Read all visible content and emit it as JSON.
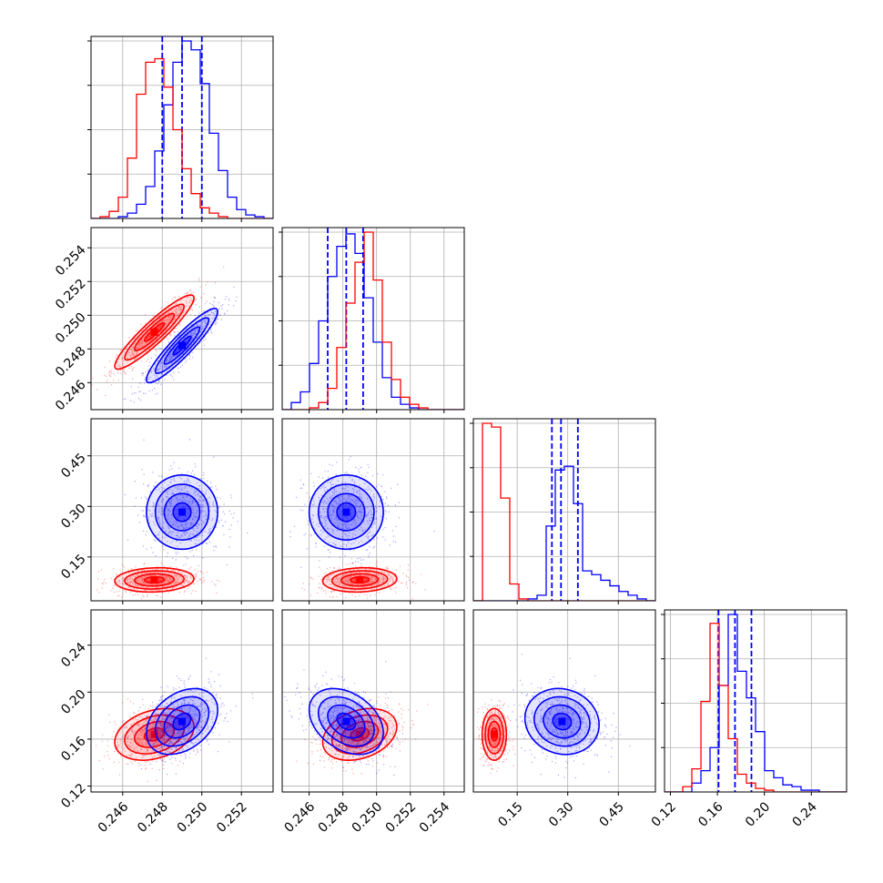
{
  "colors": {
    "series_a": "#0000ff",
    "series_b": "#ff0000",
    "grid": "#b0b0b0"
  },
  "chart_data": {
    "type": "corner",
    "grid": true,
    "parameters": [
      {
        "range": [
          0.2444,
          0.2536
        ],
        "ticks": [
          0.246,
          0.248,
          0.25,
          0.252
        ],
        "tick_labels": [
          "0.246",
          "0.248",
          "0.250",
          "0.252"
        ]
      },
      {
        "range": [
          0.2444,
          0.2552
        ],
        "ticks": [
          0.246,
          0.248,
          0.25,
          0.252,
          0.254
        ],
        "tick_labels": [
          "0.246",
          "0.248",
          "0.250",
          "0.252",
          "0.254"
        ]
      },
      {
        "range": [
          0.02,
          0.56
        ],
        "ticks": [
          0.15,
          0.3,
          0.45
        ],
        "tick_labels": [
          "0.15",
          "0.30",
          "0.45"
        ]
      },
      {
        "range": [
          0.115,
          0.27
        ],
        "ticks": [
          0.12,
          0.16,
          0.2,
          0.24
        ],
        "tick_labels": [
          "0.12",
          "0.16",
          "0.20",
          "0.24"
        ]
      }
    ],
    "series": [
      {
        "color": "#0000ff",
        "mean": [
          0.249,
          0.2482,
          0.283,
          0.175
        ],
        "std": [
          0.0009,
          0.0011,
          0.055,
          0.014
        ],
        "quantiles": [
          [
            0.248,
            0.249,
            0.25
          ],
          [
            0.2471,
            0.2482,
            0.2492
          ],
          [
            0.253,
            0.28,
            0.33
          ],
          [
            0.161,
            0.175,
            0.189
          ]
        ],
        "corr": [
          [
            0,
            1,
            0.92
          ],
          [
            0,
            2,
            0.0
          ],
          [
            0,
            3,
            0.35
          ],
          [
            1,
            2,
            0.0
          ],
          [
            1,
            3,
            -0.35
          ],
          [
            2,
            3,
            -0.1
          ]
        ],
        "hist": [
          {
            "edges": [
              0.2444,
              0.2536
            ],
            "counts": [
              0,
              0,
              0,
              1,
              3,
              8,
              18,
              38,
              64,
              88,
              100,
              95,
              76,
              48,
              27,
              12,
              5,
              2,
              1,
              0
            ]
          },
          {
            "edges": [
              0.2444,
              0.2552
            ],
            "counts": [
              0,
              4,
              10,
              26,
              50,
              75,
              92,
              99,
              88,
              63,
              38,
              18,
              7,
              3,
              1,
              0,
              0,
              0,
              0,
              0
            ]
          },
          {
            "edges": [
              0.02,
              0.56
            ],
            "counts": [
              0,
              0,
              0,
              0,
              0,
              0,
              1,
              3,
              40,
              70,
              72,
              52,
              16,
              14,
              11,
              8,
              5,
              3,
              1,
              0
            ]
          },
          {
            "edges": [
              0.115,
              0.27
            ],
            "counts": [
              0,
              0,
              0,
              5,
              12,
              25,
              60,
              100,
              68,
              53,
              34,
              12,
              8,
              4,
              3,
              1,
              1,
              0,
              0,
              0
            ]
          }
        ]
      },
      {
        "color": "#ff0000",
        "mean": [
          0.2476,
          0.249,
          0.082,
          0.164
        ],
        "std": [
          0.001,
          0.0011,
          0.018,
          0.011
        ],
        "quantiles": [],
        "corr": [
          [
            0,
            1,
            0.92
          ],
          [
            0,
            2,
            0.1
          ],
          [
            0,
            3,
            0.3
          ],
          [
            1,
            2,
            0.1
          ],
          [
            1,
            3,
            0.3
          ],
          [
            2,
            3,
            0.0
          ]
        ],
        "hist": [
          {
            "edges": [
              0.2444,
              0.2536
            ],
            "counts": [
              0,
              1,
              4,
              12,
              34,
              70,
              88,
              90,
              74,
              50,
              28,
              14,
              6,
              3,
              1,
              0,
              0,
              0,
              0,
              0
            ]
          },
          {
            "edges": [
              0.2444,
              0.2552
            ],
            "counts": [
              0,
              0,
              0,
              1,
              4,
              12,
              35,
              60,
              83,
              100,
              73,
              38,
              17,
              7,
              3,
              1,
              0,
              0,
              0,
              0
            ]
          },
          {
            "edges": [
              0.02,
              0.56
            ],
            "counts": [
              0,
              95,
              93,
              55,
              9,
              1,
              0,
              0,
              0,
              0,
              0,
              0,
              0,
              0,
              0,
              0,
              0,
              0,
              0,
              0
            ]
          },
          {
            "edges": [
              0.115,
              0.27
            ],
            "counts": [
              0,
              0,
              3,
              13,
              51,
              95,
              60,
              30,
              10,
              5,
              2,
              1,
              0,
              0,
              0,
              0,
              0,
              0,
              0,
              0
            ]
          }
        ]
      }
    ]
  }
}
